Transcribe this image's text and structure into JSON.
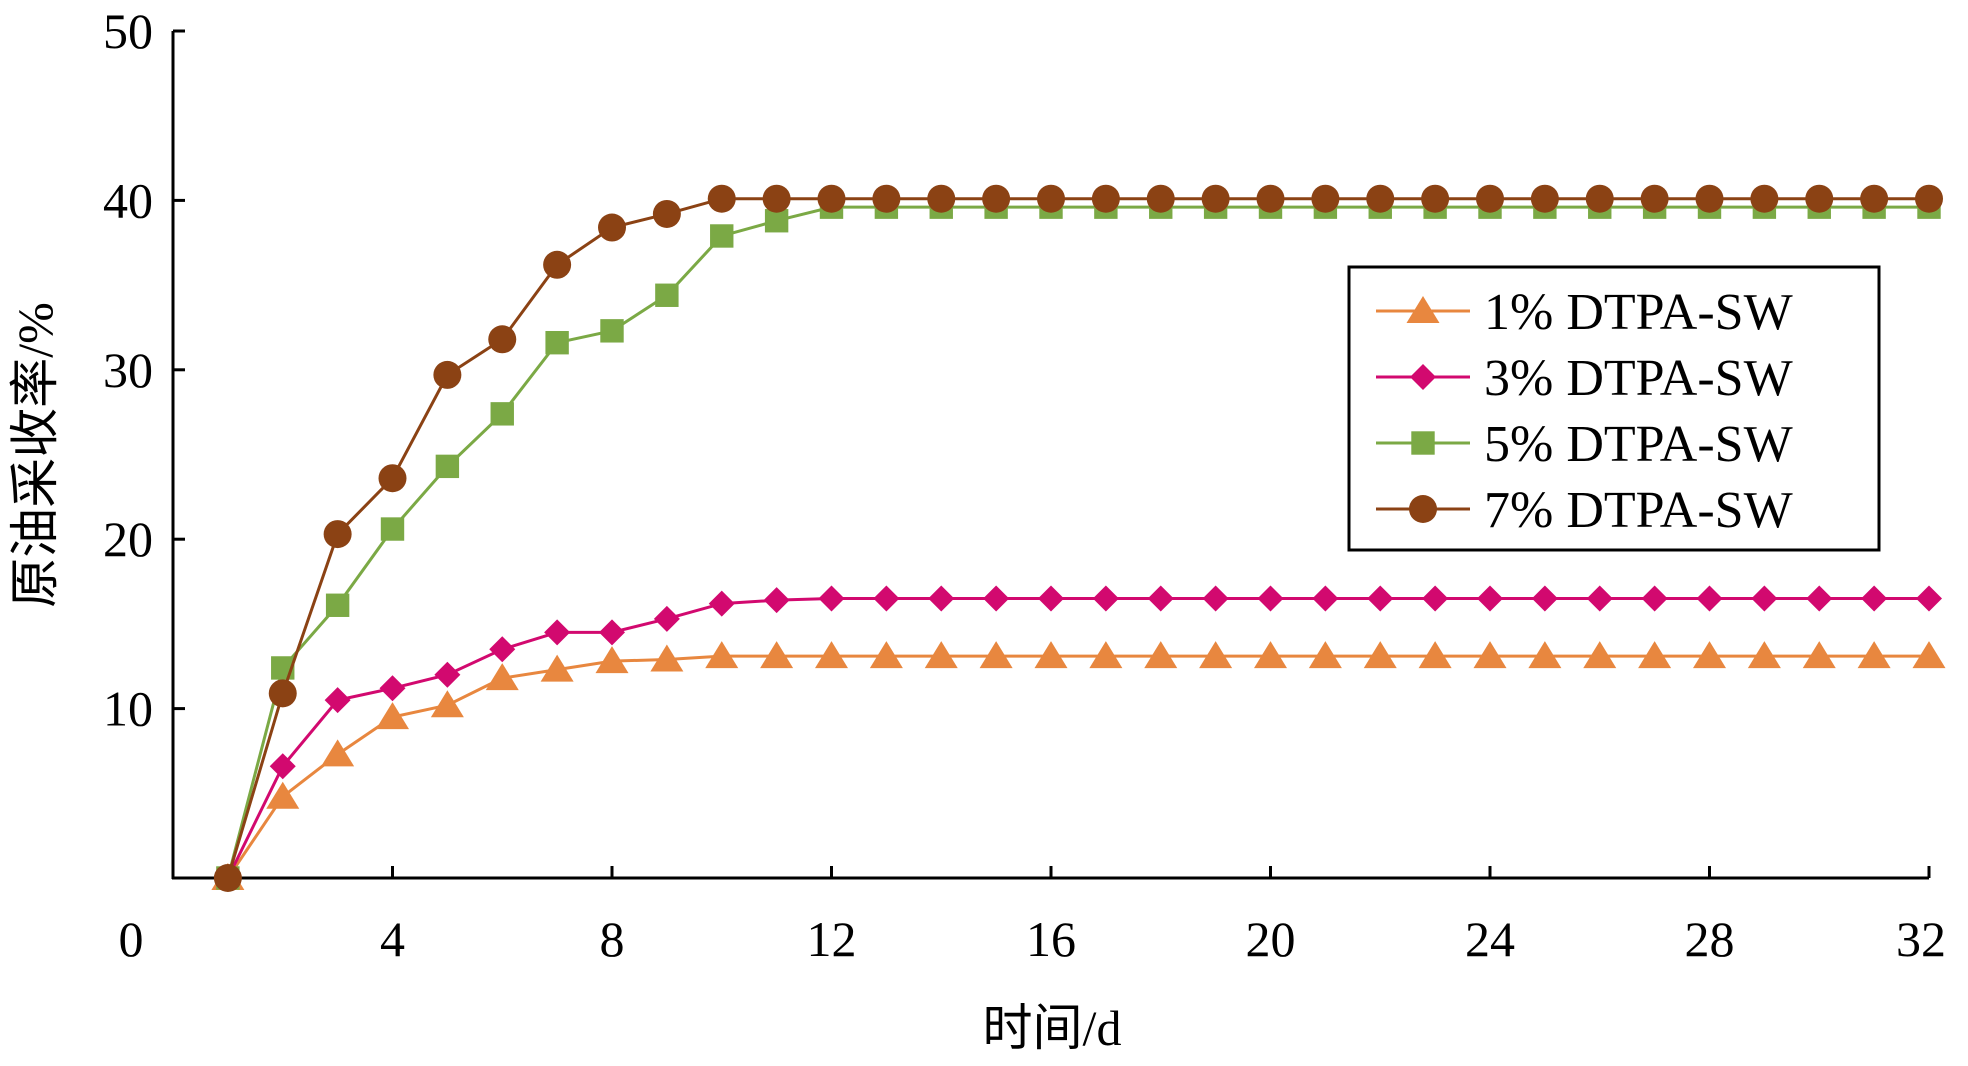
{
  "chart_data": {
    "type": "line",
    "title": "",
    "xlabel": "时间/d",
    "ylabel": "原油采收率/%",
    "xlim": [
      0,
      32
    ],
    "ylim": [
      0,
      50
    ],
    "xticks": [
      0,
      4,
      8,
      12,
      16,
      20,
      24,
      28,
      32
    ],
    "yticks": [
      10,
      20,
      30,
      40,
      50
    ],
    "grid": false,
    "legend_position": "right",
    "x": [
      1,
      2,
      3,
      4,
      5,
      6,
      7,
      8,
      9,
      10,
      11,
      12,
      13,
      14,
      15,
      16,
      17,
      18,
      19,
      20,
      21,
      22,
      23,
      24,
      25,
      26,
      27,
      28,
      29,
      30,
      31,
      32
    ],
    "series": [
      {
        "name": "1% DTPA-SW",
        "color": "#E8873F",
        "marker": "triangle",
        "values": [
          0,
          4.8,
          7.3,
          9.5,
          10.2,
          11.8,
          12.3,
          12.8,
          12.9,
          13.1,
          13.1,
          13.1,
          13.1,
          13.1,
          13.1,
          13.1,
          13.1,
          13.1,
          13.1,
          13.1,
          13.1,
          13.1,
          13.1,
          13.1,
          13.1,
          13.1,
          13.1,
          13.1,
          13.1,
          13.1,
          13.1,
          13.1
        ]
      },
      {
        "name": "3% DTPA-SW",
        "color": "#D2096F",
        "marker": "diamond",
        "values": [
          0,
          6.6,
          10.5,
          11.2,
          12.0,
          13.5,
          14.5,
          14.5,
          15.3,
          16.2,
          16.4,
          16.5,
          16.5,
          16.5,
          16.5,
          16.5,
          16.5,
          16.5,
          16.5,
          16.5,
          16.5,
          16.5,
          16.5,
          16.5,
          16.5,
          16.5,
          16.5,
          16.5,
          16.5,
          16.5,
          16.5,
          16.5
        ]
      },
      {
        "name": "5% DTPA-SW",
        "color": "#7BA945",
        "marker": "square",
        "values": [
          0,
          12.4,
          16.1,
          20.6,
          24.3,
          27.4,
          31.6,
          32.3,
          34.4,
          37.9,
          38.8,
          39.6,
          39.6,
          39.6,
          39.6,
          39.6,
          39.6,
          39.6,
          39.6,
          39.6,
          39.6,
          39.6,
          39.6,
          39.6,
          39.6,
          39.6,
          39.6,
          39.6,
          39.6,
          39.6,
          39.6,
          39.6
        ]
      },
      {
        "name": "7% DTPA-SW",
        "color": "#8B4214",
        "marker": "circle",
        "values": [
          0,
          10.9,
          20.3,
          23.6,
          29.7,
          31.8,
          36.2,
          38.4,
          39.2,
          40.1,
          40.1,
          40.1,
          40.1,
          40.1,
          40.1,
          40.1,
          40.1,
          40.1,
          40.1,
          40.1,
          40.1,
          40.1,
          40.1,
          40.1,
          40.1,
          40.1,
          40.1,
          40.1,
          40.1,
          40.1,
          40.1,
          40.1
        ]
      }
    ]
  }
}
